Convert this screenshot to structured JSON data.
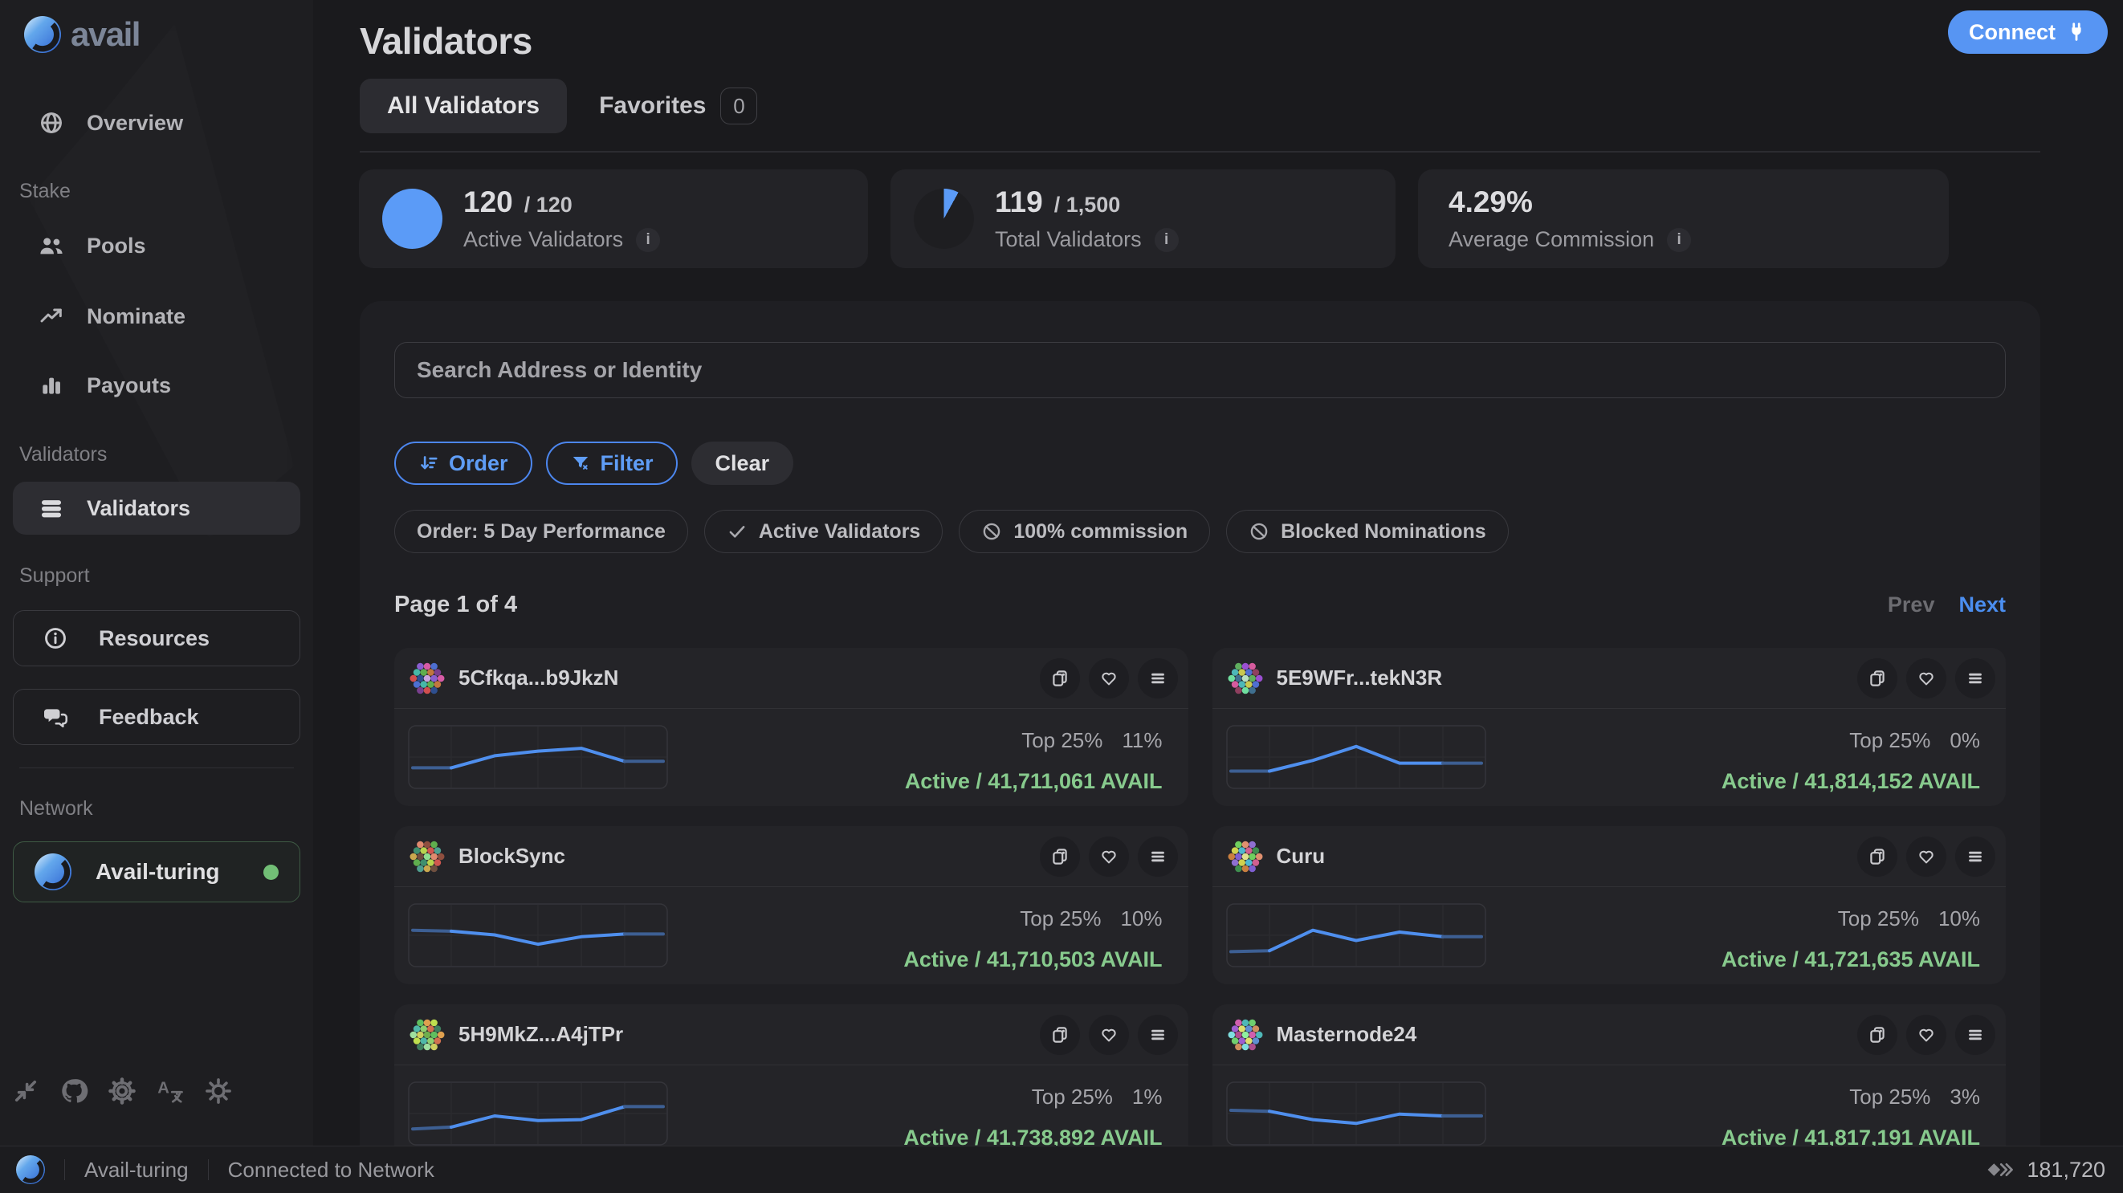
{
  "brand": {
    "name": "avail"
  },
  "connect": {
    "label": "Connect"
  },
  "sidebar": {
    "sections": [
      {
        "type": "item",
        "id": "overview",
        "icon": "globe",
        "label": "Overview",
        "active": false
      },
      {
        "type": "label",
        "text": "Stake"
      },
      {
        "type": "item",
        "id": "pools",
        "icon": "pools",
        "label": "Pools",
        "active": false
      },
      {
        "type": "item",
        "id": "nominate",
        "icon": "trend",
        "label": "Nominate",
        "active": false
      },
      {
        "type": "item",
        "id": "payouts",
        "icon": "bars",
        "label": "Payouts",
        "active": false
      },
      {
        "type": "label",
        "text": "Validators"
      },
      {
        "type": "item",
        "id": "validators",
        "icon": "stack",
        "label": "Validators",
        "active": true
      },
      {
        "type": "label",
        "text": "Support"
      },
      {
        "type": "box",
        "id": "resources",
        "icon": "info",
        "label": "Resources"
      },
      {
        "type": "box",
        "id": "feedback",
        "icon": "chat",
        "label": "Feedback"
      },
      {
        "type": "divider"
      },
      {
        "type": "label",
        "text": "Network"
      },
      {
        "type": "network",
        "id": "network",
        "label": "Avail-turing"
      }
    ],
    "tools": [
      "collapse",
      "github",
      "gear",
      "translate",
      "sun"
    ]
  },
  "header": {
    "title": "Validators",
    "tabs": [
      {
        "label": "All Validators",
        "active": true
      },
      {
        "label": "Favorites",
        "badge": "0"
      }
    ]
  },
  "stats": [
    {
      "value": "120",
      "suffix": "/ 120",
      "label": "Active Validators",
      "pie_pct": 100
    },
    {
      "value": "119",
      "suffix": "/ 1,500",
      "label": "Total Validators",
      "pie_pct": 8
    },
    {
      "value": "4.29%",
      "suffix": "",
      "label": "Average Commission",
      "pie_pct": null
    }
  ],
  "toolbar": {
    "search_placeholder": "Search Address or Identity",
    "order": "Order",
    "filter": "Filter",
    "clear": "Clear",
    "chips": [
      {
        "icon": "none",
        "label": "Order: 5 Day Performance"
      },
      {
        "icon": "check",
        "label": "Active Validators"
      },
      {
        "icon": "ban",
        "label": "100% commission"
      },
      {
        "icon": "ban",
        "label": "Blocked Nominations"
      }
    ]
  },
  "pagination": {
    "label": "Page 1 of 4",
    "prev": "Prev",
    "next": "Next"
  },
  "accent": "#5b9bf7",
  "green": "#87ca8d",
  "validators": [
    {
      "name": "5Cfkqa...b9JkzN",
      "top": "Top 25%",
      "pct": "11%",
      "active": "Active / 41,711,061 AVAIL",
      "spark": [
        32,
        32,
        58,
        68,
        74,
        46,
        46
      ],
      "palette": [
        "#8a5fd1",
        "#d75ba6",
        "#4d6fd1",
        "#46b8a8",
        "#5fae4e",
        "#c1773f",
        "#7a3f8f",
        "#d14f4f",
        "#2e4f8f",
        "#caa5e0"
      ]
    },
    {
      "name": "5E9WFr...tekN3R",
      "top": "Top 25%",
      "pct": "0%",
      "active": "Active / 41,814,152 AVAIL",
      "spark": [
        25,
        25,
        48,
        78,
        42,
        42,
        42
      ],
      "palette": [
        "#5fae5f",
        "#9a4fd1",
        "#d75b9e",
        "#4db8b8",
        "#c9c94f",
        "#4f6fd1",
        "#8f3f5f",
        "#6fdf9f",
        "#3f6f8f",
        "#b8e0c0"
      ]
    },
    {
      "name": "BlockSync",
      "top": "Top 25%",
      "pct": "10%",
      "active": "Active / 41,710,503 AVAIL",
      "spark": [
        66,
        64,
        56,
        36,
        52,
        58,
        58
      ],
      "palette": [
        "#e08a6f",
        "#8f4f3f",
        "#5fae4e",
        "#3f8f6f",
        "#b8d44f",
        "#d1574f",
        "#4f9f8f",
        "#caa84f",
        "#6f4f3f",
        "#8fdf8f"
      ]
    },
    {
      "name": "Curu",
      "top": "Top 25%",
      "pct": "10%",
      "active": "Active / 41,721,635 AVAIL",
      "spark": [
        20,
        22,
        66,
        44,
        62,
        52,
        52
      ],
      "palette": [
        "#6fcf5f",
        "#e0906f",
        "#8f6fd1",
        "#d1d14f",
        "#4fb8d1",
        "#d15f8f",
        "#3f8f4f",
        "#c97f3f",
        "#7f5fd1",
        "#dfdf8f"
      ]
    },
    {
      "name": "5H9MkZ...A4jTPr",
      "top": "Top 25%",
      "pct": "1%",
      "active": "Active / 41,738,892 AVAIL",
      "spark": [
        22,
        26,
        50,
        40,
        42,
        70,
        70
      ],
      "palette": [
        "#5fbf5f",
        "#e0a04f",
        "#bfdf4f",
        "#4fb8a8",
        "#8fcf6f",
        "#d1704f",
        "#3f7f5f",
        "#9fdf9f",
        "#cfcf5f",
        "#6fae4e"
      ]
    },
    {
      "name": "Masternode24",
      "top": "Top 25%",
      "pct": "3%",
      "active": "Active / 41,817,191 AVAIL",
      "spark": [
        62,
        60,
        42,
        34,
        54,
        50,
        50
      ],
      "palette": [
        "#d15fae",
        "#4fb8b8",
        "#6fcf6f",
        "#9f5fd1",
        "#dfdf6f",
        "#5f8fd1",
        "#cf8f5f",
        "#7fdfdf",
        "#af4f8f",
        "#8fef9f"
      ]
    }
  ],
  "footer": {
    "network": "Avail-turing",
    "status": "Connected to Network",
    "block": "181,720"
  }
}
